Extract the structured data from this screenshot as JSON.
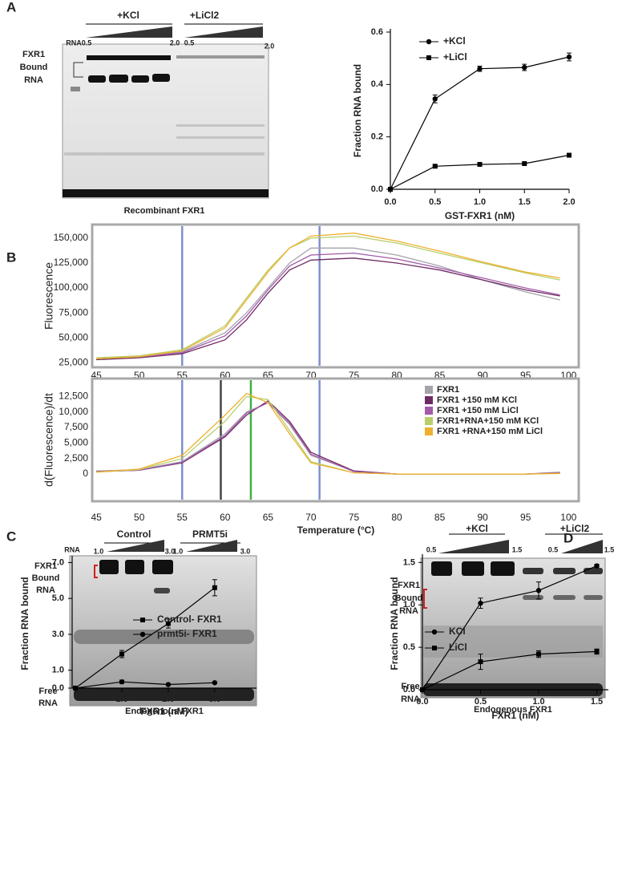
{
  "figure": {
    "panel_labels": [
      "A",
      "B",
      "C",
      "D"
    ],
    "gels": [
      {
        "groups": [
          "+KCl",
          "+LiCl2"
        ],
        "lane_label": "RNA",
        "doses": [
          "0.5",
          "2.0",
          "0.5",
          "2.0"
        ],
        "bound_label": [
          "FXR1",
          "Bound",
          "RNA"
        ],
        "caption": "Recombinant FXR1"
      },
      {
        "groups": [
          "Control",
          "PRMT5i"
        ],
        "lane_label": "RNA",
        "doses": [
          "1.0",
          "3.0",
          "1.0",
          "3.0"
        ],
        "bound_label": [
          "FXR1",
          "Bound",
          "RNA"
        ],
        "free_label": [
          "Free",
          "RNA"
        ],
        "caption": "Endogenous FXR1"
      },
      {
        "groups": [
          "+KCl",
          "+LiCl2"
        ],
        "doses": [
          "0.5",
          "1.5",
          "0.5",
          "1.5"
        ],
        "bound_label": [
          "FXR1",
          "Bound",
          "RNA"
        ],
        "free_label": [
          "Free",
          "RNA"
        ],
        "caption": "Endogenous FXR1"
      }
    ]
  },
  "chart_data": [
    {
      "type": "line",
      "x_label": "GST-FXR1 (nM)",
      "y_label": "Fraction RNA bound",
      "x": [
        0,
        0.5,
        1,
        1.5,
        2
      ],
      "series": [
        {
          "name": "+KCl",
          "color": "#000000",
          "marker": "circle",
          "values": [
            0,
            0.345,
            0.46,
            0.465,
            0.505
          ],
          "errors": [
            0,
            0.015,
            0.01,
            0.012,
            0.015
          ]
        },
        {
          "name": "+LiCl",
          "color": "#000000",
          "marker": "square",
          "values": [
            0,
            0.088,
            0.095,
            0.098,
            0.13
          ],
          "errors": [
            0,
            0.004,
            0.004,
            0.004,
            0.004
          ]
        }
      ],
      "xlim": [
        0,
        2
      ],
      "ylim": [
        0,
        0.6
      ],
      "xticks": [
        {
          "value": 0,
          "label": "0.0"
        },
        0.5,
        {
          "value": 1,
          "label": "1.0"
        },
        1.5,
        {
          "value": 2,
          "label": "2.0"
        }
      ],
      "yticks": [
        {
          "value": 0,
          "label": "0.0"
        },
        0.2,
        0.4,
        0.6
      ]
    },
    {
      "type": "line",
      "y_label": "Fluorescence",
      "x": [
        45,
        50,
        55,
        60,
        62.5,
        65,
        67.5,
        70,
        75,
        80,
        85,
        90,
        95,
        99
      ],
      "series": [
        {
          "name": "FXR1",
          "color": "#a4a4ac",
          "values": [
            29000,
            31000,
            36000,
            55000,
            75000,
            100000,
            125000,
            140000,
            140000,
            133000,
            122000,
            108000,
            96000,
            88000
          ]
        },
        {
          "name": "FXR1 +150 mM KCl",
          "color": "#6e2a63",
          "values": [
            28000,
            30000,
            34000,
            48000,
            68000,
            95000,
            118000,
            128000,
            130000,
            125000,
            118000,
            108000,
            98000,
            92000
          ]
        },
        {
          "name": "FXR1 +150 mM LiCl",
          "color": "#a25aa9",
          "values": [
            29000,
            31000,
            35000,
            52000,
            72000,
            98000,
            122000,
            133000,
            135000,
            129000,
            120000,
            110000,
            100000,
            93000
          ]
        },
        {
          "name": "FXR1+RNA+150 mM KCl",
          "color": "#b6cf6a",
          "values": [
            30000,
            32000,
            38000,
            62000,
            90000,
            118000,
            140000,
            150000,
            152000,
            145000,
            135000,
            125000,
            115000,
            108000
          ]
        },
        {
          "name": "FXR1 +RNA+150 mM LiCl",
          "color": "#efb02e",
          "values": [
            29000,
            31000,
            37000,
            60000,
            88000,
            116000,
            140000,
            152000,
            155000,
            147000,
            137000,
            126000,
            116000,
            110000
          ]
        }
      ],
      "vlines": [
        {
          "x": 55,
          "color": "#7f8fd0"
        },
        {
          "x": 71,
          "color": "#7f8fd0"
        }
      ],
      "xlim": [
        44.8,
        101
      ],
      "ylim": [
        22000,
        162000
      ],
      "xticks": [
        45,
        50,
        55,
        60,
        65,
        70,
        75,
        80,
        85,
        90,
        95,
        100
      ],
      "yticks": [
        {
          "value": 25000,
          "label": "25,000"
        },
        {
          "value": 50000,
          "label": "50,000"
        },
        {
          "value": 75000,
          "label": "75,000"
        },
        {
          "value": 100000,
          "label": "100,000"
        },
        {
          "value": 125000,
          "label": "125,000"
        },
        {
          "value": 150000,
          "label": "150,000"
        }
      ]
    },
    {
      "type": "line",
      "x_label": "Temperature (°C)",
      "y_label": "d(Fluorescence)/dt",
      "x": [
        45,
        50,
        55,
        60,
        62.5,
        65,
        67.5,
        70,
        75,
        80,
        85,
        90,
        95,
        99
      ],
      "series": [
        {
          "name": "FXR1",
          "color": "#a4a4ac",
          "values": [
            500,
            700,
            2000,
            6500,
            10000,
            11500,
            8000,
            3000,
            500,
            0,
            0,
            0,
            0,
            300
          ]
        },
        {
          "name": "FXR1 +150 mM KCl",
          "color": "#6e2a63",
          "values": [
            400,
            600,
            1800,
            6000,
            9500,
            11800,
            8500,
            3500,
            500,
            0,
            0,
            0,
            0,
            200
          ]
        },
        {
          "name": "FXR1 +150 mM LiCl",
          "color": "#a25aa9",
          "values": [
            400,
            600,
            1900,
            6200,
            9800,
            11500,
            8200,
            3200,
            400,
            0,
            0,
            0,
            0,
            200
          ]
        },
        {
          "name": "FXR1+RNA+150 mM KCl",
          "color": "#b6cf6a",
          "values": [
            300,
            700,
            2500,
            8500,
            12500,
            12000,
            7000,
            2000,
            200,
            0,
            0,
            0,
            0,
            100
          ]
        },
        {
          "name": "FXR1 +RNA+150 mM LiCl",
          "color": "#efb02e",
          "values": [
            300,
            800,
            3000,
            9500,
            13000,
            11500,
            6500,
            1800,
            200,
            0,
            0,
            0,
            0,
            100
          ]
        }
      ],
      "vlines": [
        {
          "x": 55,
          "color": "#7f8fd0"
        },
        {
          "x": 59.5,
          "color": "#444444"
        },
        {
          "x": 63,
          "color": "#3fae49"
        },
        {
          "x": 71,
          "color": "#7f8fd0"
        }
      ],
      "xlim": [
        44.8,
        101
      ],
      "ylim": [
        -4000,
        15000
      ],
      "xticks": [
        45,
        50,
        55,
        60,
        65,
        70,
        75,
        80,
        85,
        90,
        95,
        100
      ],
      "yticks": [
        0,
        {
          "value": 2500,
          "label": "2,500"
        },
        {
          "value": 5000,
          "label": "5,000"
        },
        {
          "value": 7500,
          "label": "7,500"
        },
        {
          "value": 10000,
          "label": "10,000"
        },
        {
          "value": 12500,
          "label": "12,500"
        }
      ]
    },
    {
      "type": "line",
      "x_label": "FXR1 (nM)",
      "y_label": "Fraction RNA bound",
      "x": [
        0,
        1,
        2,
        3
      ],
      "series": [
        {
          "name": "Control- FXR1",
          "color": "#000000",
          "marker": "square",
          "values": [
            0,
            1.9,
            3.6,
            5.6
          ],
          "errors": [
            0,
            0.2,
            0.25,
            0.45
          ]
        },
        {
          "name": "prmt5i- FXR1",
          "color": "#000000",
          "marker": "circle",
          "values": [
            0,
            0.35,
            0.2,
            0.3
          ],
          "errors": [
            0,
            0.1,
            0.05,
            0.05
          ]
        }
      ],
      "xlim": [
        -0.07,
        3.9
      ],
      "ylim": [
        0,
        7.2
      ],
      "xticks": [
        {
          "value": 1,
          "label": "1.0"
        },
        {
          "value": 2,
          "label": "2.0"
        },
        {
          "value": 3,
          "label": "3.0"
        }
      ],
      "yticks": [
        {
          "value": 0,
          "label": "0.0"
        },
        {
          "value": 1,
          "label": "1.0"
        },
        {
          "value": 3,
          "label": "3.0"
        },
        {
          "value": 5,
          "label": "5.0"
        },
        {
          "value": 7,
          "label": "7.0"
        }
      ]
    },
    {
      "type": "line",
      "x_label": "FXR1 (nM)",
      "y_label": "Fraction RNA bound",
      "x": [
        0,
        0.5,
        1,
        1.5
      ],
      "series": [
        {
          "name": "KCl",
          "color": "#000000",
          "marker": "circle",
          "values": [
            0,
            1.02,
            1.17,
            1.46
          ],
          "errors": [
            0,
            0.06,
            0.1,
            0.02
          ]
        },
        {
          "name": "LiCl",
          "color": "#000000",
          "marker": "square",
          "values": [
            0,
            0.33,
            0.42,
            0.45
          ],
          "errors": [
            0,
            0.09,
            0.04,
            0.03
          ]
        }
      ],
      "xlim": [
        0,
        1.6
      ],
      "ylim": [
        0,
        1.56
      ],
      "xticks": [
        {
          "value": 0,
          "label": "0.0"
        },
        0.5,
        {
          "value": 1,
          "label": "1.0"
        },
        1.5
      ],
      "yticks": [
        {
          "value": 0,
          "label": "0.0"
        },
        0.5,
        {
          "value": 1,
          "label": "1.0"
        },
        1.5
      ]
    }
  ]
}
